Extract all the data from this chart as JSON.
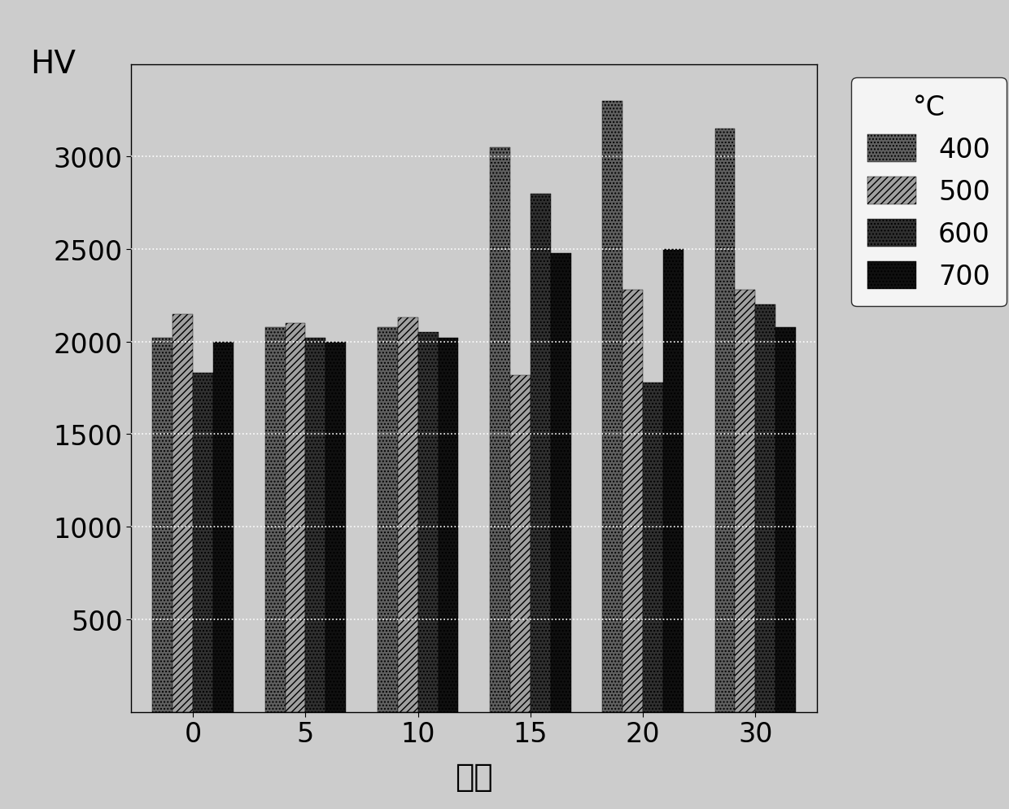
{
  "categories": [
    "0",
    "5",
    "10",
    "15",
    "20",
    "30"
  ],
  "xlabel": "分钉",
  "ylabel": "HV",
  "ylim": [
    0,
    3500
  ],
  "yticks": [
    500,
    1000,
    1500,
    2000,
    2500,
    3000
  ],
  "legend_title": "°C",
  "legend_labels": [
    "400",
    "500",
    "600",
    "700"
  ],
  "values": {
    "400": [
      2020,
      2080,
      2080,
      3050,
      3300,
      3150
    ],
    "500": [
      2150,
      2100,
      2130,
      1820,
      2280,
      2280
    ],
    "600": [
      1830,
      2020,
      2050,
      2800,
      1780,
      2200
    ],
    "700": [
      2000,
      2000,
      2020,
      2480,
      2500,
      2080
    ]
  },
  "background_color": "#cccccc",
  "plot_bg_color": "#cccccc",
  "grid_color": "#ffffff",
  "font_size_ticks": 24,
  "font_size_labels": 28,
  "font_size_legend": 24
}
